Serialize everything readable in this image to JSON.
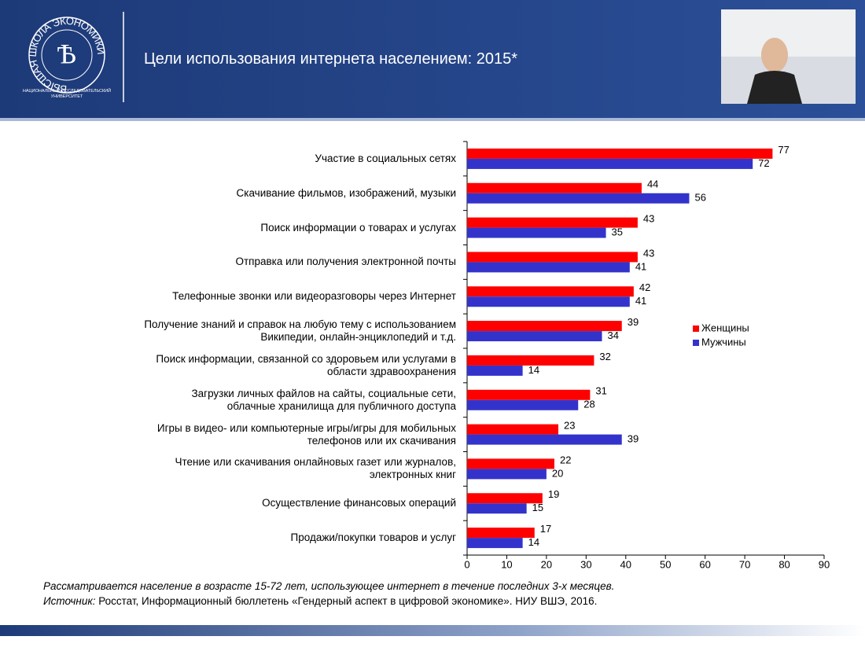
{
  "header": {
    "title": "Цели использования интернета населением: 2015*",
    "logo_ring": "ВЫСШАЯ ШКОЛА ЭКОНОМИКИ",
    "logo_text": "НАЦИОНАЛЬНЫЙ ИССЛЕДОВАТЕЛЬСКИЙ\nУНИВЕРСИТЕТ"
  },
  "chart_data": {
    "type": "bar",
    "orientation": "horizontal",
    "categories": [
      "Участие в социальных  сетях",
      "Скачивание  фильмов, изображений,  музыки",
      "Поиск информации  о товарах и услугах",
      "Отправка или получения  электронной почты",
      "Телефонные  звонки или видеоразговоры через Интернет",
      "Получение  знаний  и справок на любую тему с использованием\nВикипедии,  онлайн-энциклопедий  и т.д.",
      "Поиск информации,  связанной со здоровьем или услугами в\nобласти здравоохранения",
      "Загрузки личных  файлов на сайты, социальные сети,\nоблачные хранилища  для публичного  доступа",
      "Игры в видео- или компьютерные игры/игры для мобильных\nтелефонов   или их скачивания",
      "Чтение или скачивания  онлайновых  газет или журналов,\nэлектронных  книг",
      "Осуществление  финансовых  операций",
      "Продажи/покупки  товаров и услуг"
    ],
    "series": [
      {
        "name": "Женщины",
        "color": "#ff0000",
        "values": [
          77,
          44,
          43,
          43,
          42,
          39,
          32,
          31,
          23,
          22,
          19,
          17
        ]
      },
      {
        "name": "Мужчины",
        "color": "#3333cc",
        "values": [
          72,
          56,
          35,
          41,
          41,
          34,
          14,
          28,
          39,
          20,
          15,
          14
        ]
      }
    ],
    "xlim": [
      0,
      90
    ],
    "xticks": [
      0,
      10,
      20,
      30,
      40,
      50,
      60,
      70,
      80,
      90
    ],
    "legend": "right"
  },
  "footnote": {
    "note": "Рассматривается население в возрасте 15-72 лет, использующее интернет в течение последних 3-х месяцев.",
    "source_label": "Источник:",
    "source_text": " Росстат, Информационный  бюллетень  «Гендерный аспект в цифровой экономике». НИУ ВШЭ, 2016."
  }
}
